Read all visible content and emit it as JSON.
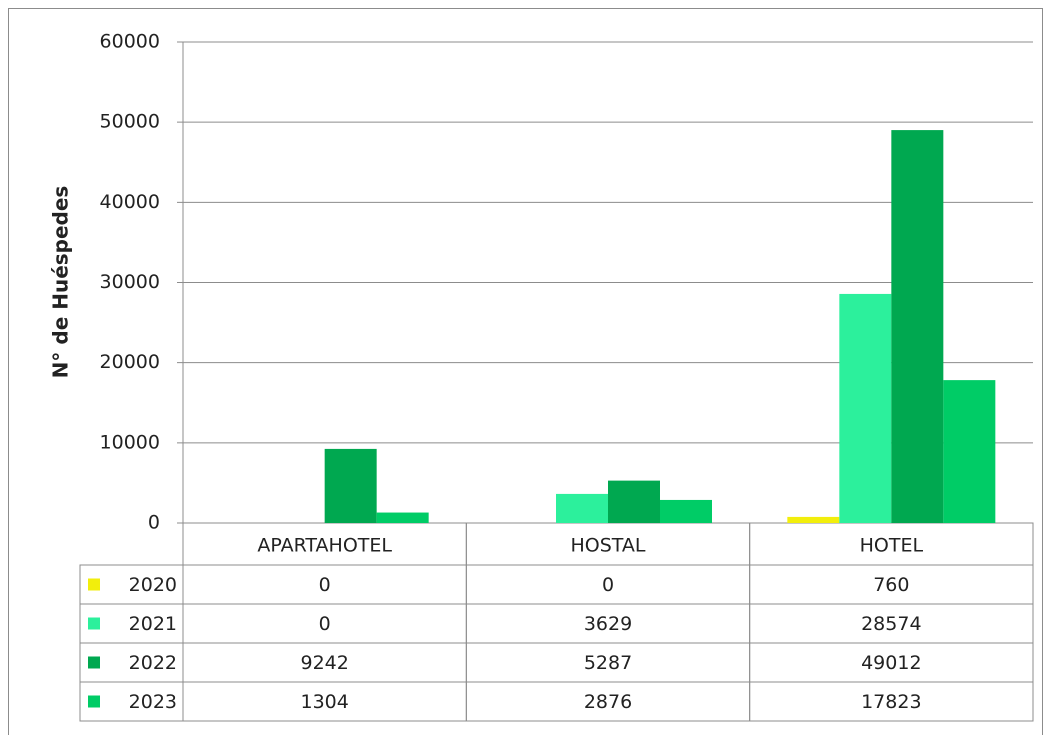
{
  "chart_data": {
    "type": "bar",
    "y_label": "N° de Huéspedes",
    "categories": [
      "APARTAHOTEL",
      "HOSTAL",
      "HOTEL"
    ],
    "series": [
      {
        "name": "2020",
        "color": "#f2ee0c",
        "values": [
          0,
          0,
          760
        ]
      },
      {
        "name": "2021",
        "color": "#2cf09c",
        "values": [
          0,
          3629,
          28574
        ]
      },
      {
        "name": "2022",
        "color": "#00a850",
        "values": [
          9242,
          5287,
          49012
        ]
      },
      {
        "name": "2023",
        "color": "#00cc66",
        "values": [
          1304,
          2876,
          17823
        ]
      }
    ],
    "ylim": [
      0,
      60000
    ],
    "yticks": [
      0,
      10000,
      20000,
      30000,
      40000,
      50000,
      60000
    ],
    "grid": true
  }
}
